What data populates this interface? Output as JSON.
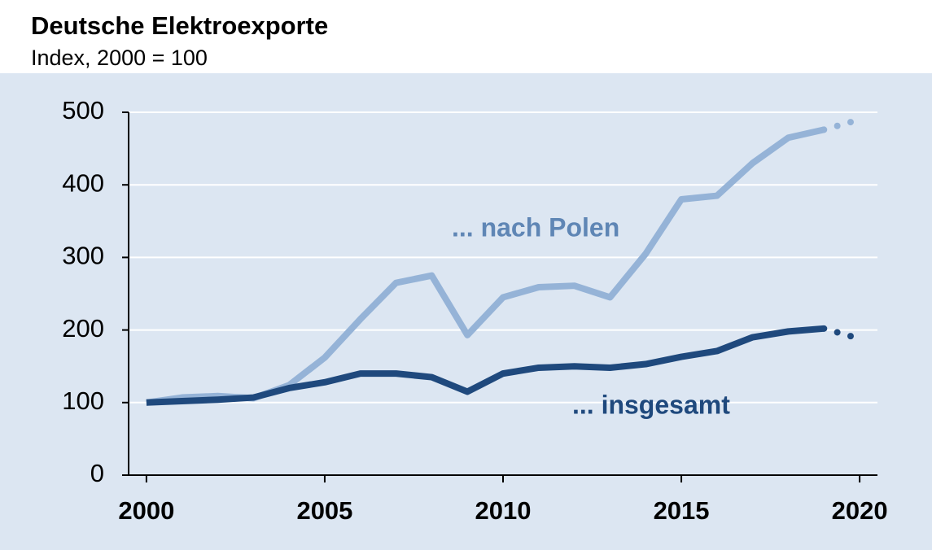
{
  "chart_data": {
    "type": "line",
    "title": "Deutsche Elektroexporte",
    "subtitle": "Index, 2000 = 100",
    "x": [
      2000,
      2001,
      2002,
      2003,
      2004,
      2005,
      2006,
      2007,
      2008,
      2009,
      2010,
      2011,
      2012,
      2013,
      2014,
      2015,
      2016,
      2017,
      2018,
      2019,
      2020
    ],
    "series": [
      {
        "name": "... nach Polen",
        "color": "#95b3d7",
        "label_color": "#5f86b5",
        "values": [
          100,
          107,
          109,
          106,
          124,
          162,
          215,
          265,
          275,
          193,
          245,
          259,
          261,
          245,
          305,
          380,
          385,
          430,
          465,
          476,
          490
        ]
      },
      {
        "name": "... insgesamt",
        "color": "#1f497d",
        "label_color": "#1f497d",
        "values": [
          100,
          102,
          104,
          107,
          120,
          128,
          140,
          140,
          135,
          115,
          140,
          148,
          150,
          148,
          153,
          163,
          171,
          190,
          198,
          202,
          188
        ]
      }
    ],
    "xlim": [
      1999.5,
      2020.5
    ],
    "xticks": [
      2000,
      2005,
      2010,
      2015,
      2020
    ],
    "ylim": [
      0,
      500
    ],
    "yticks": [
      0,
      100,
      200,
      300,
      400,
      500
    ],
    "grid": true,
    "dotted_last_segment": true
  }
}
